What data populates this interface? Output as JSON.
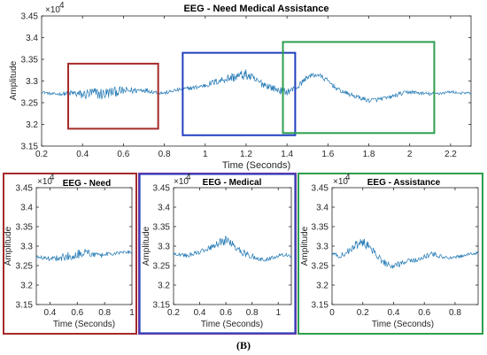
{
  "figure_label": "(B)",
  "colors": {
    "signal": "#1f77b4",
    "red_box": "#a52a2a",
    "blue_box": "#2040c0",
    "green_box": "#2e9e4e",
    "purple_box": "#6a3aa8"
  },
  "chart_data": [
    {
      "type": "line",
      "title": "EEG - Need Medical Assistance",
      "xlabel": "Time (Seconds)",
      "ylabel": "Amplitude",
      "exponent": "×10",
      "exponent_power": "4",
      "xlim": [
        0.2,
        2.3
      ],
      "ylim": [
        3.15,
        3.45
      ],
      "xticks": [
        0.2,
        0.4,
        0.6,
        0.8,
        1,
        1.2,
        1.4,
        1.6,
        1.8,
        2,
        2.2
      ],
      "xtick_labels": [
        "0.2",
        "0.4",
        "0.6",
        "0.8",
        "1",
        "1.2",
        "1.4",
        "1.6",
        "1.8",
        "2",
        "2.2"
      ],
      "yticks": [
        3.15,
        3.2,
        3.25,
        3.3,
        3.35,
        3.4,
        3.45
      ],
      "ytick_labels": [
        "3.15",
        "3.2",
        "3.25",
        "3.3",
        "3.35",
        "3.4",
        "3.45"
      ],
      "series": [
        {
          "x": [
            0.2,
            0.25,
            0.3,
            0.35,
            0.4,
            0.45,
            0.5,
            0.55,
            0.6,
            0.65,
            0.7,
            0.75,
            0.8,
            0.85,
            0.9,
            0.95,
            1.0,
            1.05,
            1.1,
            1.15,
            1.2,
            1.25,
            1.3,
            1.35,
            1.4,
            1.45,
            1.5,
            1.55,
            1.6,
            1.65,
            1.7,
            1.75,
            1.8,
            1.85,
            1.9,
            1.95,
            2.0,
            2.05,
            2.1,
            2.15,
            2.2,
            2.25,
            2.3
          ],
          "values": [
            3.275,
            3.27,
            3.27,
            3.272,
            3.268,
            3.272,
            3.27,
            3.275,
            3.277,
            3.278,
            3.28,
            3.275,
            3.272,
            3.278,
            3.282,
            3.285,
            3.29,
            3.298,
            3.305,
            3.31,
            3.315,
            3.3,
            3.29,
            3.28,
            3.275,
            3.285,
            3.31,
            3.315,
            3.3,
            3.28,
            3.27,
            3.262,
            3.255,
            3.258,
            3.262,
            3.27,
            3.275,
            3.272,
            3.27,
            3.272,
            3.275,
            3.272,
            3.272
          ],
          "noise": [
            0.003,
            0.003,
            0.004,
            0.008,
            0.012,
            0.014,
            0.015,
            0.012,
            0.01,
            0.008,
            0.006,
            0.005,
            0.004,
            0.004,
            0.004,
            0.005,
            0.006,
            0.008,
            0.01,
            0.012,
            0.012,
            0.01,
            0.009,
            0.008,
            0.008,
            0.007,
            0.006,
            0.006,
            0.006,
            0.005,
            0.005,
            0.005,
            0.005,
            0.005,
            0.004,
            0.005,
            0.005,
            0.004,
            0.004,
            0.004,
            0.003,
            0.003,
            0.003
          ]
        }
      ],
      "boxes": [
        {
          "name": "red",
          "x": [
            0.33,
            0.77
          ],
          "y": [
            3.19,
            3.34
          ]
        },
        {
          "name": "blue",
          "x": [
            0.89,
            1.44
          ],
          "y": [
            3.175,
            3.365
          ]
        },
        {
          "name": "green",
          "x": [
            1.38,
            2.12
          ],
          "y": [
            3.18,
            3.39
          ]
        }
      ]
    },
    {
      "type": "line",
      "title": "EEG - Need",
      "xlabel": "Time (Seconds)",
      "ylabel": "Amplitude",
      "exponent": "×10",
      "exponent_power": "4",
      "xlim": [
        0.3,
        1.0
      ],
      "ylim": [
        3.15,
        3.45
      ],
      "xticks": [
        0.4,
        0.6,
        0.8,
        1
      ],
      "xtick_labels": [
        "0.4",
        "0.6",
        "0.8",
        "1"
      ],
      "yticks": [
        3.15,
        3.2,
        3.25,
        3.3,
        3.35,
        3.4,
        3.45
      ],
      "ytick_labels": [
        "3.15",
        "3.2",
        "3.25",
        "3.3",
        "3.35",
        "3.4",
        "3.45"
      ],
      "series": [
        {
          "x": [
            0.3,
            0.35,
            0.4,
            0.45,
            0.5,
            0.55,
            0.6,
            0.65,
            0.7,
            0.75,
            0.8,
            0.85,
            0.9,
            0.95,
            1.0
          ],
          "values": [
            3.272,
            3.27,
            3.268,
            3.27,
            3.272,
            3.275,
            3.28,
            3.285,
            3.28,
            3.275,
            3.278,
            3.28,
            3.282,
            3.285,
            3.285
          ],
          "noise": [
            0.004,
            0.005,
            0.006,
            0.008,
            0.01,
            0.012,
            0.014,
            0.012,
            0.01,
            0.008,
            0.006,
            0.005,
            0.004,
            0.004,
            0.004
          ]
        }
      ]
    },
    {
      "type": "line",
      "title": "EEG - Medical",
      "xlabel": "Time (Seconds)",
      "ylabel": "Amplitude",
      "exponent": "×10",
      "exponent_power": "4",
      "xlim": [
        0.2,
        1.1
      ],
      "ylim": [
        3.15,
        3.45
      ],
      "xticks": [
        0.2,
        0.4,
        0.6,
        0.8,
        1
      ],
      "xtick_labels": [
        "0.2",
        "0.4",
        "0.6",
        "0.8",
        "1"
      ],
      "yticks": [
        3.15,
        3.2,
        3.25,
        3.3,
        3.35,
        3.4,
        3.45
      ],
      "ytick_labels": [
        "3.15",
        "3.2",
        "3.25",
        "3.3",
        "3.35",
        "3.4",
        "3.45"
      ],
      "series": [
        {
          "x": [
            0.2,
            0.25,
            0.3,
            0.35,
            0.4,
            0.45,
            0.5,
            0.55,
            0.6,
            0.65,
            0.7,
            0.75,
            0.8,
            0.85,
            0.9,
            0.95,
            1.0,
            1.05,
            1.1
          ],
          "values": [
            3.28,
            3.278,
            3.275,
            3.28,
            3.285,
            3.29,
            3.3,
            3.31,
            3.315,
            3.305,
            3.29,
            3.28,
            3.275,
            3.265,
            3.265,
            3.27,
            3.275,
            3.278,
            3.275
          ],
          "noise": [
            0.004,
            0.004,
            0.005,
            0.005,
            0.006,
            0.007,
            0.008,
            0.01,
            0.012,
            0.01,
            0.009,
            0.008,
            0.007,
            0.006,
            0.005,
            0.005,
            0.004,
            0.004,
            0.004
          ]
        }
      ]
    },
    {
      "type": "line",
      "title": "EEG - Assistance",
      "xlabel": "Time (Seconds)",
      "ylabel": "Amplitude",
      "exponent": "×10",
      "exponent_power": "4",
      "xlim": [
        0.0,
        0.95
      ],
      "ylim": [
        3.15,
        3.45
      ],
      "xticks": [
        0,
        0.2,
        0.4,
        0.6,
        0.8
      ],
      "xtick_labels": [
        "0",
        "0.2",
        "0.4",
        "0.6",
        "0.8"
      ],
      "yticks": [
        3.15,
        3.2,
        3.25,
        3.3,
        3.35,
        3.4,
        3.45
      ],
      "ytick_labels": [
        "3.15",
        "3.2",
        "3.25",
        "3.3",
        "3.35",
        "3.4",
        "3.45"
      ],
      "series": [
        {
          "x": [
            0.0,
            0.05,
            0.1,
            0.15,
            0.2,
            0.25,
            0.3,
            0.35,
            0.4,
            0.45,
            0.5,
            0.55,
            0.6,
            0.65,
            0.7,
            0.75,
            0.8,
            0.85,
            0.9,
            0.95
          ],
          "values": [
            3.28,
            3.275,
            3.285,
            3.3,
            3.31,
            3.295,
            3.27,
            3.255,
            3.25,
            3.255,
            3.262,
            3.265,
            3.272,
            3.28,
            3.275,
            3.27,
            3.272,
            3.275,
            3.28,
            3.282
          ],
          "noise": [
            0.005,
            0.006,
            0.008,
            0.012,
            0.014,
            0.012,
            0.01,
            0.009,
            0.008,
            0.007,
            0.006,
            0.006,
            0.006,
            0.006,
            0.005,
            0.005,
            0.005,
            0.004,
            0.004,
            0.004
          ]
        }
      ]
    }
  ]
}
